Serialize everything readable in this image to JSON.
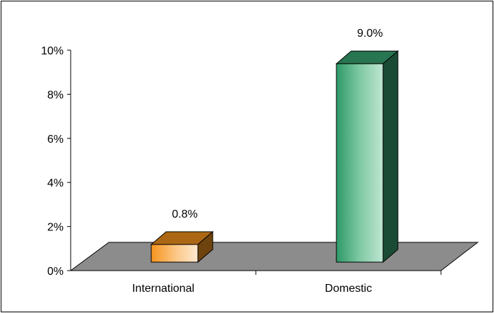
{
  "chart_data": {
    "type": "bar",
    "style": "3d-column",
    "categories": [
      "International",
      "Domestic"
    ],
    "values": [
      0.8,
      9.0
    ],
    "data_labels": [
      "0.8%",
      "9.0%"
    ],
    "ylim": [
      0,
      10
    ],
    "y_ticks": [
      0,
      2,
      4,
      6,
      8,
      10
    ],
    "y_tick_labels": [
      "0%",
      "2%",
      "4%",
      "6%",
      "8%",
      "10%"
    ],
    "grid": false,
    "legend": "none",
    "colors": {
      "International": "#f7941d",
      "Domestic": "#3aa875",
      "floor": "#8c8c8c"
    }
  }
}
